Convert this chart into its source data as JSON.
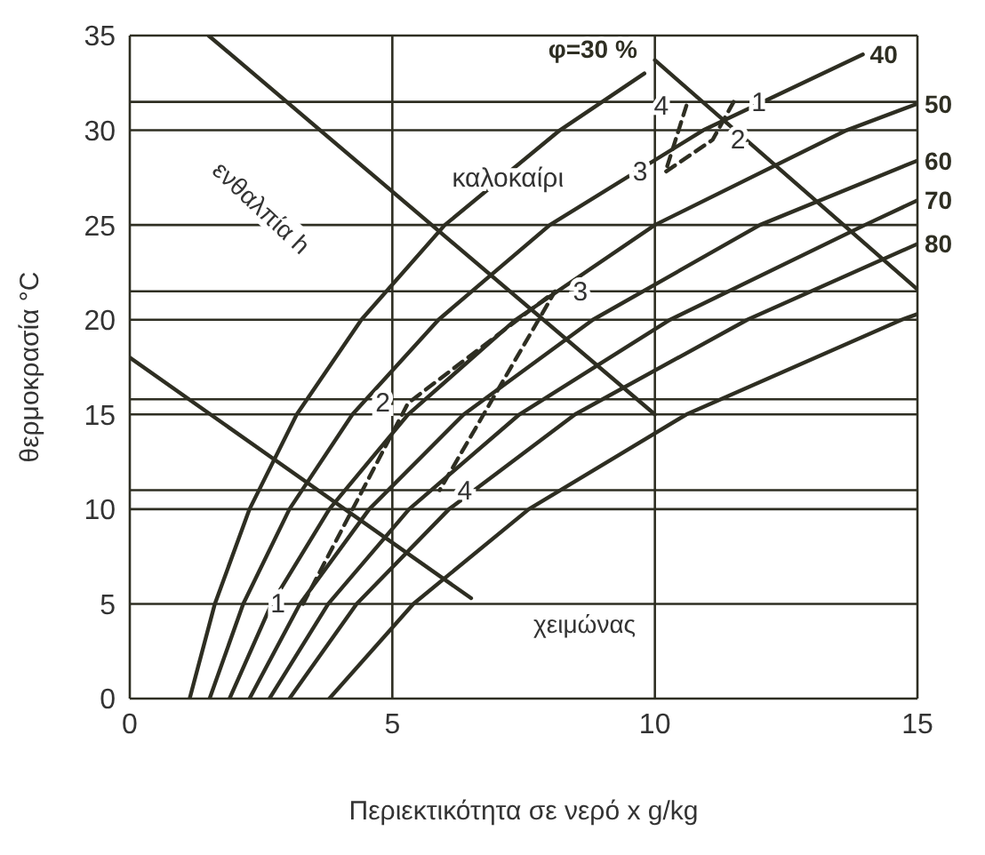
{
  "chart_data": {
    "type": "line",
    "xlabel": "Περιεκτικότητα σε νερό x   g/kg",
    "ylabel": "θερμοκρασία  °C",
    "xlim": [
      0,
      15
    ],
    "ylim": [
      0,
      35
    ],
    "xticks": [
      0,
      5,
      10,
      15
    ],
    "yticks": [
      0,
      5,
      10,
      15,
      20,
      25,
      30,
      35
    ],
    "grid": true,
    "legend": false,
    "marker": "none",
    "line_style": "solid",
    "series": [
      {
        "name": "φ=30 %",
        "color": "#2e2e22",
        "x": [
          1.14,
          1.62,
          2.28,
          3.18,
          4.41,
          6.0,
          8.19,
          9.8
        ],
        "values": [
          0,
          5,
          10,
          15,
          20,
          25,
          30,
          33
        ]
      },
      {
        "name": "40",
        "color": "#2e2e22",
        "x": [
          1.52,
          2.16,
          3.04,
          4.24,
          5.88,
          8.0,
          10.92,
          13.96
        ],
        "values": [
          0,
          5,
          10,
          15,
          20,
          25,
          30,
          34
        ]
      },
      {
        "name": "50",
        "color": "#2e2e22",
        "x": [
          1.9,
          2.7,
          3.8,
          5.3,
          7.35,
          10.0,
          13.65,
          15
        ],
        "values": [
          0,
          5,
          10,
          15,
          20,
          25,
          30,
          31.4
        ]
      },
      {
        "name": "60",
        "color": "#2e2e22",
        "x": [
          2.28,
          3.24,
          4.56,
          6.36,
          8.82,
          12.0,
          15
        ],
        "values": [
          0,
          5,
          10,
          15,
          20,
          25,
          28.4
        ]
      },
      {
        "name": "70",
        "color": "#2e2e22",
        "x": [
          2.66,
          3.78,
          5.32,
          7.42,
          10.29,
          14.0,
          15
        ],
        "values": [
          0,
          5,
          10,
          15,
          20,
          25,
          26.3
        ]
      },
      {
        "name": "80",
        "color": "#2e2e22",
        "x": [
          3.04,
          4.32,
          6.08,
          8.48,
          11.76,
          15
        ],
        "values": [
          0,
          5,
          10,
          15,
          20,
          24.0
        ]
      },
      {
        "color": "#2e2e22",
        "x": [
          3.8,
          5.4,
          7.6,
          10.6,
          14.7,
          15
        ],
        "values": [
          0,
          5,
          10,
          15,
          20,
          20.3
        ]
      },
      {
        "color": "#2e2e22",
        "x": [
          1.5,
          10
        ],
        "values": [
          35,
          15
        ]
      },
      {
        "color": "#2e2e22",
        "x": [
          0,
          6.5
        ],
        "values": [
          18,
          5.3
        ]
      },
      {
        "color": "#2e2e22",
        "x": [
          10,
          15
        ],
        "values": [
          33.7,
          21.6
        ]
      },
      {
        "color": "#2e2e22",
        "line_style": "dashed",
        "x": [
          11.5,
          11.1,
          10.2,
          10.6
        ],
        "values": [
          31.5,
          29.5,
          27.8,
          31.3
        ]
      },
      {
        "color": "#2e2e22",
        "line_style": "dashed",
        "x": [
          3.3,
          5.3,
          8.1,
          5.9
        ],
        "values": [
          5,
          15.6,
          21.5,
          11.0
        ]
      }
    ],
    "ref_lines": [
      {
        "axis": "y",
        "value": 31.5,
        "color": "#2e2e22"
      },
      {
        "axis": "y",
        "value": 21.5,
        "color": "#2e2e22"
      },
      {
        "axis": "y",
        "value": 15.8,
        "color": "#2e2e22"
      },
      {
        "axis": "y",
        "value": 11.0,
        "color": "#2e2e22"
      }
    ],
    "annotations": [
      "ενθαλπία h",
      {
        "text": "καλοκαίρι",
        "x": 7.2,
        "y": 27.5
      },
      "χειμώνας",
      {
        "text": "1",
        "x": 11.5,
        "y": 31.5
      },
      {
        "text": "2",
        "x": 11.1,
        "y": 29.5
      },
      {
        "text": "3",
        "x": 10.2,
        "y": 27.8
      },
      {
        "text": "4",
        "x": 10.6,
        "y": 31.3
      },
      {
        "text": "1",
        "x": 3.3,
        "y": 5
      },
      {
        "text": "2",
        "x": 5.3,
        "y": 15.6
      },
      {
        "text": "3",
        "x": 8.1,
        "y": 21.5
      },
      {
        "text": "4",
        "x": 5.9,
        "y": 11.0
      }
    ]
  }
}
